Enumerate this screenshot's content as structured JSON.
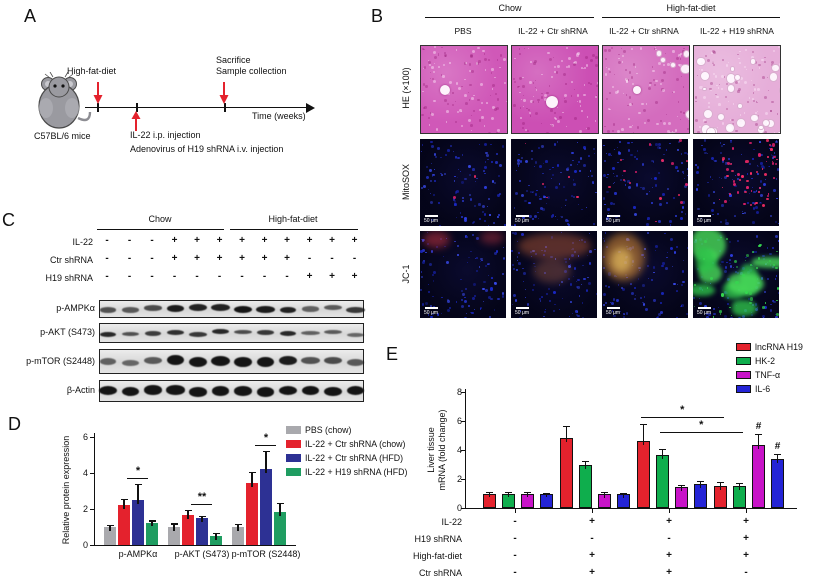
{
  "panel_a": {
    "label": "A",
    "mouse_caption": "C57BL/6 mice",
    "event_hfd": "High-fat-diet",
    "event_sacrifice_line1": "Sacrifice",
    "event_sacrifice_line2": "Sample collection",
    "event_injection_line1": "IL-22 i.p. injection",
    "event_injection_line2": "Adenovirus of H19 shRNA i.v. injection",
    "timeline_axis_label": "Time (weeks)"
  },
  "panel_b": {
    "label": "B",
    "group_headers": [
      "Chow",
      "High-fat-diet"
    ],
    "column_headers": [
      "PBS",
      "IL-22 + Ctr shRNA",
      "IL-22 + Ctr shRNA",
      "IL-22 + H19 shRNA"
    ],
    "row_labels": [
      "HE (×100)",
      "MitoSOX",
      "JC-1"
    ],
    "scale_bar_label": "50 μm",
    "micrographs": [
      {
        "row": "HE (×100)",
        "col": "PBS",
        "group": "Chow",
        "look": {
          "type": "he",
          "base": "#d058b8",
          "spots": [
            [
              0.28,
              0.5,
              5
            ]
          ]
        }
      },
      {
        "row": "HE (×100)",
        "col": "IL-22 + Ctr shRNA",
        "group": "Chow",
        "look": {
          "type": "he",
          "base": "#cc4fb4",
          "spots": [
            [
              0.46,
              0.64,
              6
            ]
          ]
        }
      },
      {
        "row": "HE (×100)",
        "col": "IL-22 + Ctr shRNA",
        "group": "High-fat-diet",
        "look": {
          "type": "he",
          "base": "#d46cbe",
          "spots": [
            [
              0.4,
              0.5,
              4
            ]
          ],
          "vacuoles": 8,
          "side": "right"
        }
      },
      {
        "row": "HE (×100)",
        "col": "IL-22 + H19 shRNA",
        "group": "High-fat-diet",
        "look": {
          "type": "he",
          "base": "#e6aed9",
          "vacuoles": 26,
          "side": "all"
        }
      },
      {
        "row": "MitoSOX",
        "col": "PBS",
        "group": "Chow",
        "look": {
          "type": "fluoro",
          "red_dots": 2
        }
      },
      {
        "row": "MitoSOX",
        "col": "IL-22 + Ctr shRNA",
        "group": "Chow",
        "look": {
          "type": "fluoro",
          "red_dots": 5
        }
      },
      {
        "row": "MitoSOX",
        "col": "IL-22 + Ctr shRNA",
        "group": "High-fat-diet",
        "look": {
          "type": "fluoro",
          "red_dots": 16
        }
      },
      {
        "row": "MitoSOX",
        "col": "IL-22 + H19 shRNA",
        "group": "High-fat-diet",
        "look": {
          "type": "fluoro",
          "red_dots": 52,
          "red_bias": "topright"
        }
      },
      {
        "row": "JC-1",
        "col": "PBS",
        "group": "Chow",
        "look": {
          "type": "fluoro",
          "patches": [
            [
              "#b23040",
              0.03,
              0.0,
              0.32,
              0.2,
              0.6
            ],
            [
              "#a83040",
              0.7,
              0.0,
              0.28,
              0.15,
              0.5
            ]
          ]
        }
      },
      {
        "row": "JC-1",
        "col": "IL-22 + Ctr shRNA",
        "group": "Chow",
        "look": {
          "type": "fluoro",
          "patches": [
            [
              "#aa5534",
              0.08,
              0.02,
              0.85,
              0.3,
              0.5
            ],
            [
              "#b86a40",
              0.25,
              0.32,
              0.45,
              0.28,
              0.35
            ]
          ]
        }
      },
      {
        "row": "JC-1",
        "col": "IL-22 + Ctr shRNA",
        "group": "High-fat-diet",
        "look": {
          "type": "fluoro",
          "patches": [
            [
              "#cf8638",
              0.0,
              0.02,
              0.5,
              0.55,
              0.6
            ],
            [
              "#e6bd5e",
              0.1,
              0.2,
              0.25,
              0.28,
              0.7
            ]
          ]
        }
      },
      {
        "row": "JC-1",
        "col": "IL-22 + H19 shRNA",
        "group": "High-fat-diet",
        "look": {
          "type": "fluoro",
          "green_blobs": 10
        }
      }
    ]
  },
  "panel_c": {
    "label": "C",
    "group_headers": [
      "Chow",
      "High-fat-diet"
    ],
    "condition_rows": [
      {
        "label": "IL-22",
        "values": [
          "-",
          "-",
          "-",
          "+",
          "+",
          "+",
          "+",
          "+",
          "+",
          "+",
          "+",
          "+"
        ]
      },
      {
        "label": "Ctr shRNA",
        "values": [
          "-",
          "-",
          "-",
          "+",
          "+",
          "+",
          "+",
          "+",
          "+",
          "-",
          "-",
          "-"
        ]
      },
      {
        "label": "H19 shRNA",
        "values": [
          "-",
          "-",
          "-",
          "-",
          "-",
          "-",
          "-",
          "-",
          "-",
          "+",
          "+",
          "+"
        ]
      }
    ],
    "blots": [
      {
        "label": "p-AMPKα",
        "intensities": [
          0.55,
          0.5,
          0.6,
          0.95,
          0.9,
          0.9,
          1,
          0.95,
          0.9,
          0.45,
          0.5,
          0.75
        ]
      },
      {
        "label": "p-AKT (S473)",
        "intensities": [
          0.85,
          0.55,
          0.7,
          0.8,
          0.75,
          0.85,
          0.6,
          0.75,
          0.85,
          0.45,
          0.5,
          0.4
        ]
      },
      {
        "label": "p-mTOR (S2448)",
        "intensities": [
          0.45,
          0.4,
          0.5,
          1,
          1,
          1,
          1,
          1,
          0.95,
          0.55,
          0.6,
          0.5
        ]
      },
      {
        "label": "β-Actin",
        "intensities": [
          1,
          1,
          1,
          1,
          1,
          1,
          1,
          1,
          1,
          1,
          1,
          1
        ]
      }
    ]
  },
  "panel_d": {
    "label": "D"
  },
  "panel_e": {
    "label": "E"
  },
  "chart_data": [
    {
      "id": "D",
      "type": "bar",
      "ylabel": "Relative protein expression",
      "ylim": [
        0,
        6
      ],
      "yticks": [
        0,
        2,
        4,
        6
      ],
      "grid": false,
      "legend_position": "right",
      "categories": [
        "p-AMPKα",
        "p-AKT (S473)",
        "p-mTOR (S2448)"
      ],
      "series": [
        {
          "name": "PBS (chow)",
          "color": "#a9a9ad",
          "values": [
            1.0,
            1.0,
            1.0
          ],
          "errors": [
            0.1,
            0.2,
            0.18
          ]
        },
        {
          "name": "IL-22 + Ctr shRNA (chow)",
          "color": "#e4222d",
          "values": [
            2.2,
            1.65,
            3.45
          ],
          "errors": [
            0.35,
            0.3,
            0.6
          ]
        },
        {
          "name": "IL-22 + Ctr shRNA (HFD)",
          "color": "#2d3194",
          "values": [
            2.5,
            1.5,
            4.2
          ],
          "errors": [
            0.9,
            0.12,
            1.05
          ]
        },
        {
          "name": "IL-22 + H19 shRNA (HFD)",
          "color": "#1f9d61",
          "values": [
            1.25,
            0.5,
            1.85
          ],
          "errors": [
            0.12,
            0.15,
            0.5
          ]
        }
      ],
      "sig_marks": [
        {
          "category": 0,
          "label": "*"
        },
        {
          "category": 1,
          "label": "**"
        },
        {
          "category": 2,
          "label": "*"
        }
      ]
    },
    {
      "id": "E",
      "type": "bar",
      "ylabel": "Liver tissue mRNA (fold change)",
      "ylabel_line1": "Liver tissue",
      "ylabel_line2": "mRNA (fold change)",
      "ylim": [
        0,
        8
      ],
      "yticks": [
        0,
        2,
        4,
        6,
        8
      ],
      "grid": false,
      "legend_position": "top-right",
      "groups": 4,
      "series": [
        {
          "name": "lncRNA H19",
          "color": "#e4222d",
          "values": [
            1.0,
            4.8,
            4.65,
            1.5
          ],
          "errors": [
            0.1,
            0.85,
            1.15,
            0.3
          ]
        },
        {
          "name": "HK-2",
          "color": "#0fae4d",
          "values": [
            1.0,
            3.0,
            3.65,
            1.55
          ],
          "errors": [
            0.12,
            0.25,
            0.45,
            0.2
          ]
        },
        {
          "name": "TNF-α",
          "color": "#c813c8",
          "values": [
            1.0,
            0.95,
            1.45,
            4.35
          ],
          "errors": [
            0.12,
            0.15,
            0.12,
            0.75
          ]
        },
        {
          "name": "IL-6",
          "color": "#2424d6",
          "values": [
            1.0,
            0.95,
            1.65,
            3.4
          ],
          "errors": [
            0.05,
            0.1,
            0.2,
            0.35
          ]
        }
      ],
      "sig_lines": [
        {
          "from_group": 2,
          "from_bar": 0,
          "to_group": 3,
          "to_bar": 0,
          "label": "*"
        },
        {
          "from_group": 2,
          "from_bar": 1,
          "to_group": 3,
          "to_bar": 1,
          "label": "*"
        }
      ],
      "hash_marks": [
        {
          "group": 3,
          "series": 2,
          "label": "#"
        },
        {
          "group": 3,
          "series": 3,
          "label": "#"
        }
      ],
      "condition_rows": [
        {
          "label": "IL-22",
          "values": [
            "-",
            "+",
            "+",
            "+"
          ]
        },
        {
          "label": "H19 shRNA",
          "values": [
            "-",
            "-",
            "-",
            "+"
          ]
        },
        {
          "label": "High-fat-diet",
          "values": [
            "-",
            "+",
            "+",
            "+"
          ]
        },
        {
          "label": "Ctr shRNA",
          "values": [
            "-",
            "+",
            "+",
            "-"
          ]
        }
      ]
    }
  ]
}
